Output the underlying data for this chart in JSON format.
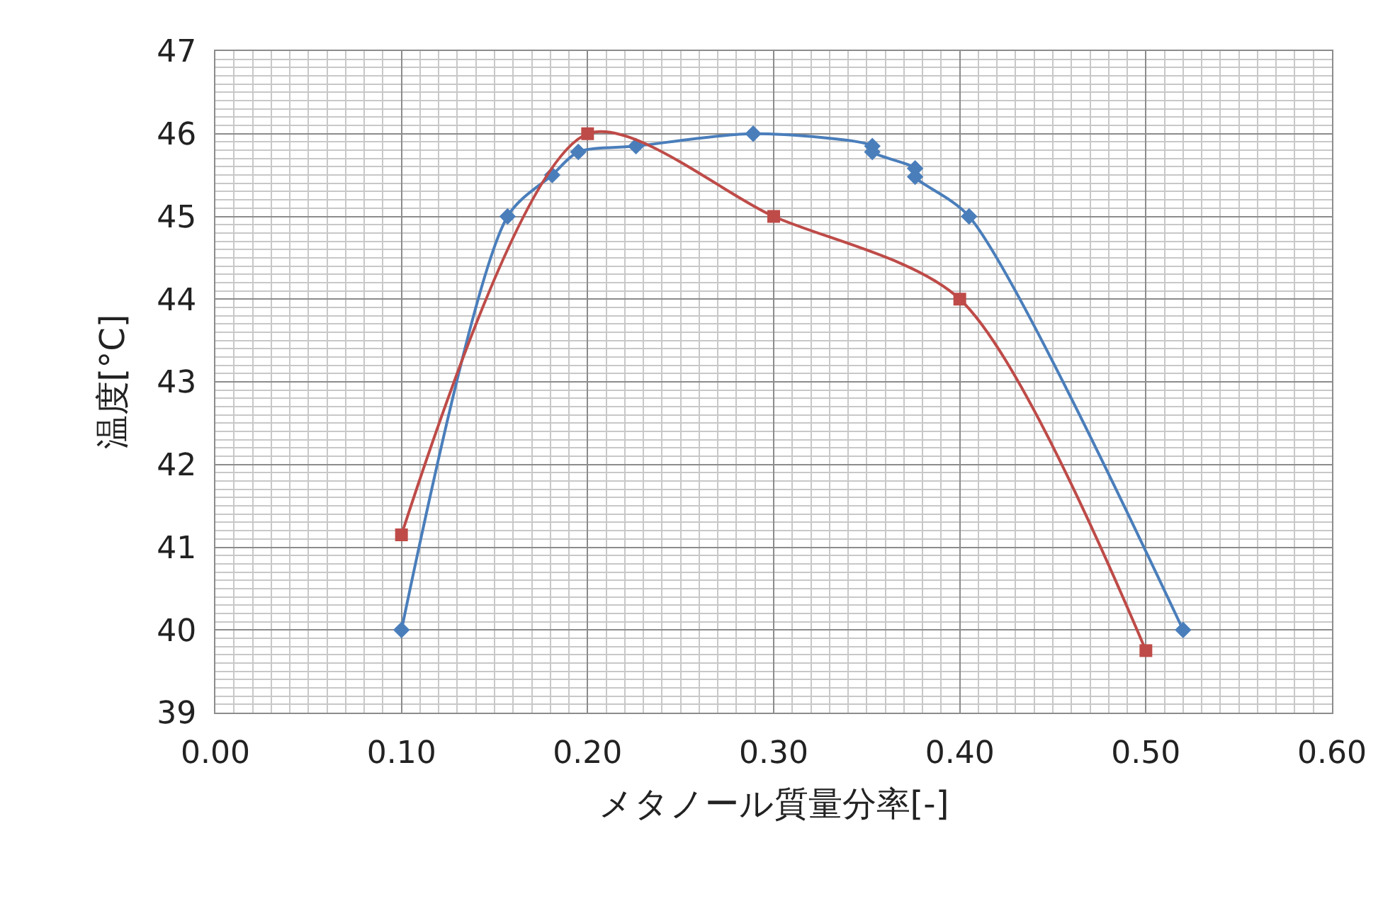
{
  "chart_data": {
    "type": "line",
    "xlabel": "メタノール質量分率[-]",
    "ylabel": "温度[°C]",
    "series": [
      {
        "color": "#4a7ebb",
        "marker": "diamond",
        "x": [
          0.1,
          0.157,
          0.181,
          0.195,
          0.226,
          0.289,
          0.353,
          0.353,
          0.376,
          0.376,
          0.405,
          0.52
        ],
        "values": [
          40.0,
          45.0,
          45.5,
          45.78,
          45.85,
          46.0,
          45.85,
          45.78,
          45.58,
          45.48,
          45.0,
          40.0
        ]
      },
      {
        "color": "#be4b48",
        "marker": "square",
        "x": [
          0.1,
          0.2,
          0.3,
          0.4,
          0.5
        ],
        "values": [
          41.15,
          46.0,
          45.0,
          44.0,
          39.75
        ]
      }
    ],
    "xlim": [
      0,
      0.6
    ],
    "ylim": [
      39,
      47
    ],
    "xticks": [
      {
        "value": 0,
        "label": "0.00"
      },
      {
        "value": 0.1,
        "label": "0.10"
      },
      {
        "value": 0.2,
        "label": "0.20"
      },
      {
        "value": 0.3,
        "label": "0.30"
      },
      {
        "value": 0.4,
        "label": "0.40"
      },
      {
        "value": 0.5,
        "label": "0.50"
      },
      {
        "value": 0.6,
        "label": "0.60"
      }
    ],
    "yticks": [
      39,
      40,
      41,
      42,
      43,
      44,
      45,
      46,
      47
    ],
    "grid": true,
    "line_style": "solid"
  }
}
